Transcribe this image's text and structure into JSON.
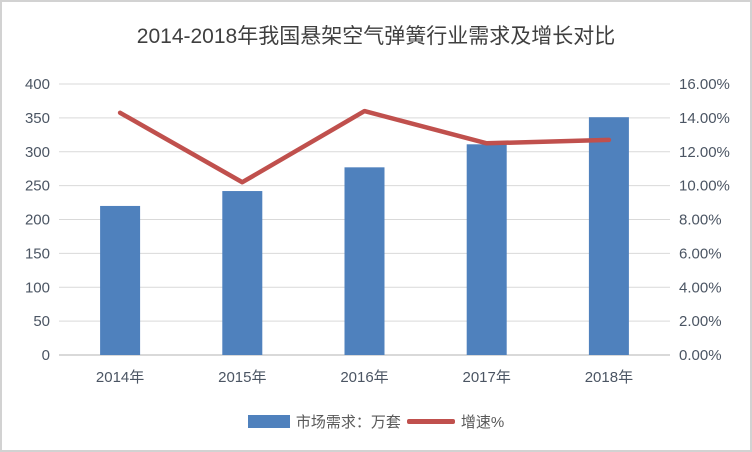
{
  "window": {
    "background": "#ffffff",
    "border_color": "#d2d2d2"
  },
  "chart_data": {
    "type": "combo-bar-line",
    "title": "2014-2018年我国悬架空气弹簧行业需求及增长对比",
    "categories": [
      "2014年",
      "2015年",
      "2016年",
      "2017年",
      "2018年"
    ],
    "series": [
      {
        "name": "市场需求：万套",
        "type": "bar",
        "axis": "left",
        "values": [
          220,
          242,
          277,
          311,
          351
        ],
        "color": "#4F81BD"
      },
      {
        "name": "增速%",
        "type": "line",
        "axis": "right",
        "values": [
          14.3,
          10.2,
          14.4,
          12.5,
          12.7
        ],
        "color": "#C0504D"
      }
    ],
    "left_axis": {
      "min": 0,
      "max": 400,
      "step": 50,
      "ticks": [
        "400",
        "350",
        "300",
        "250",
        "200",
        "150",
        "100",
        "50",
        "0"
      ]
    },
    "right_axis": {
      "min": 0,
      "max": 16,
      "step": 2,
      "ticks": [
        "16.00%",
        "14.00%",
        "12.00%",
        "10.00%",
        "8.00%",
        "6.00%",
        "4.00%",
        "2.00%",
        "0.00%"
      ]
    },
    "grid": true,
    "gridline_color": "#D9D9D9",
    "tick_text_color": "#4b5563",
    "title_color": "#3f3f3f",
    "legend": {
      "position": "bottom",
      "items": [
        "市场需求：万套",
        "增速%"
      ]
    }
  }
}
